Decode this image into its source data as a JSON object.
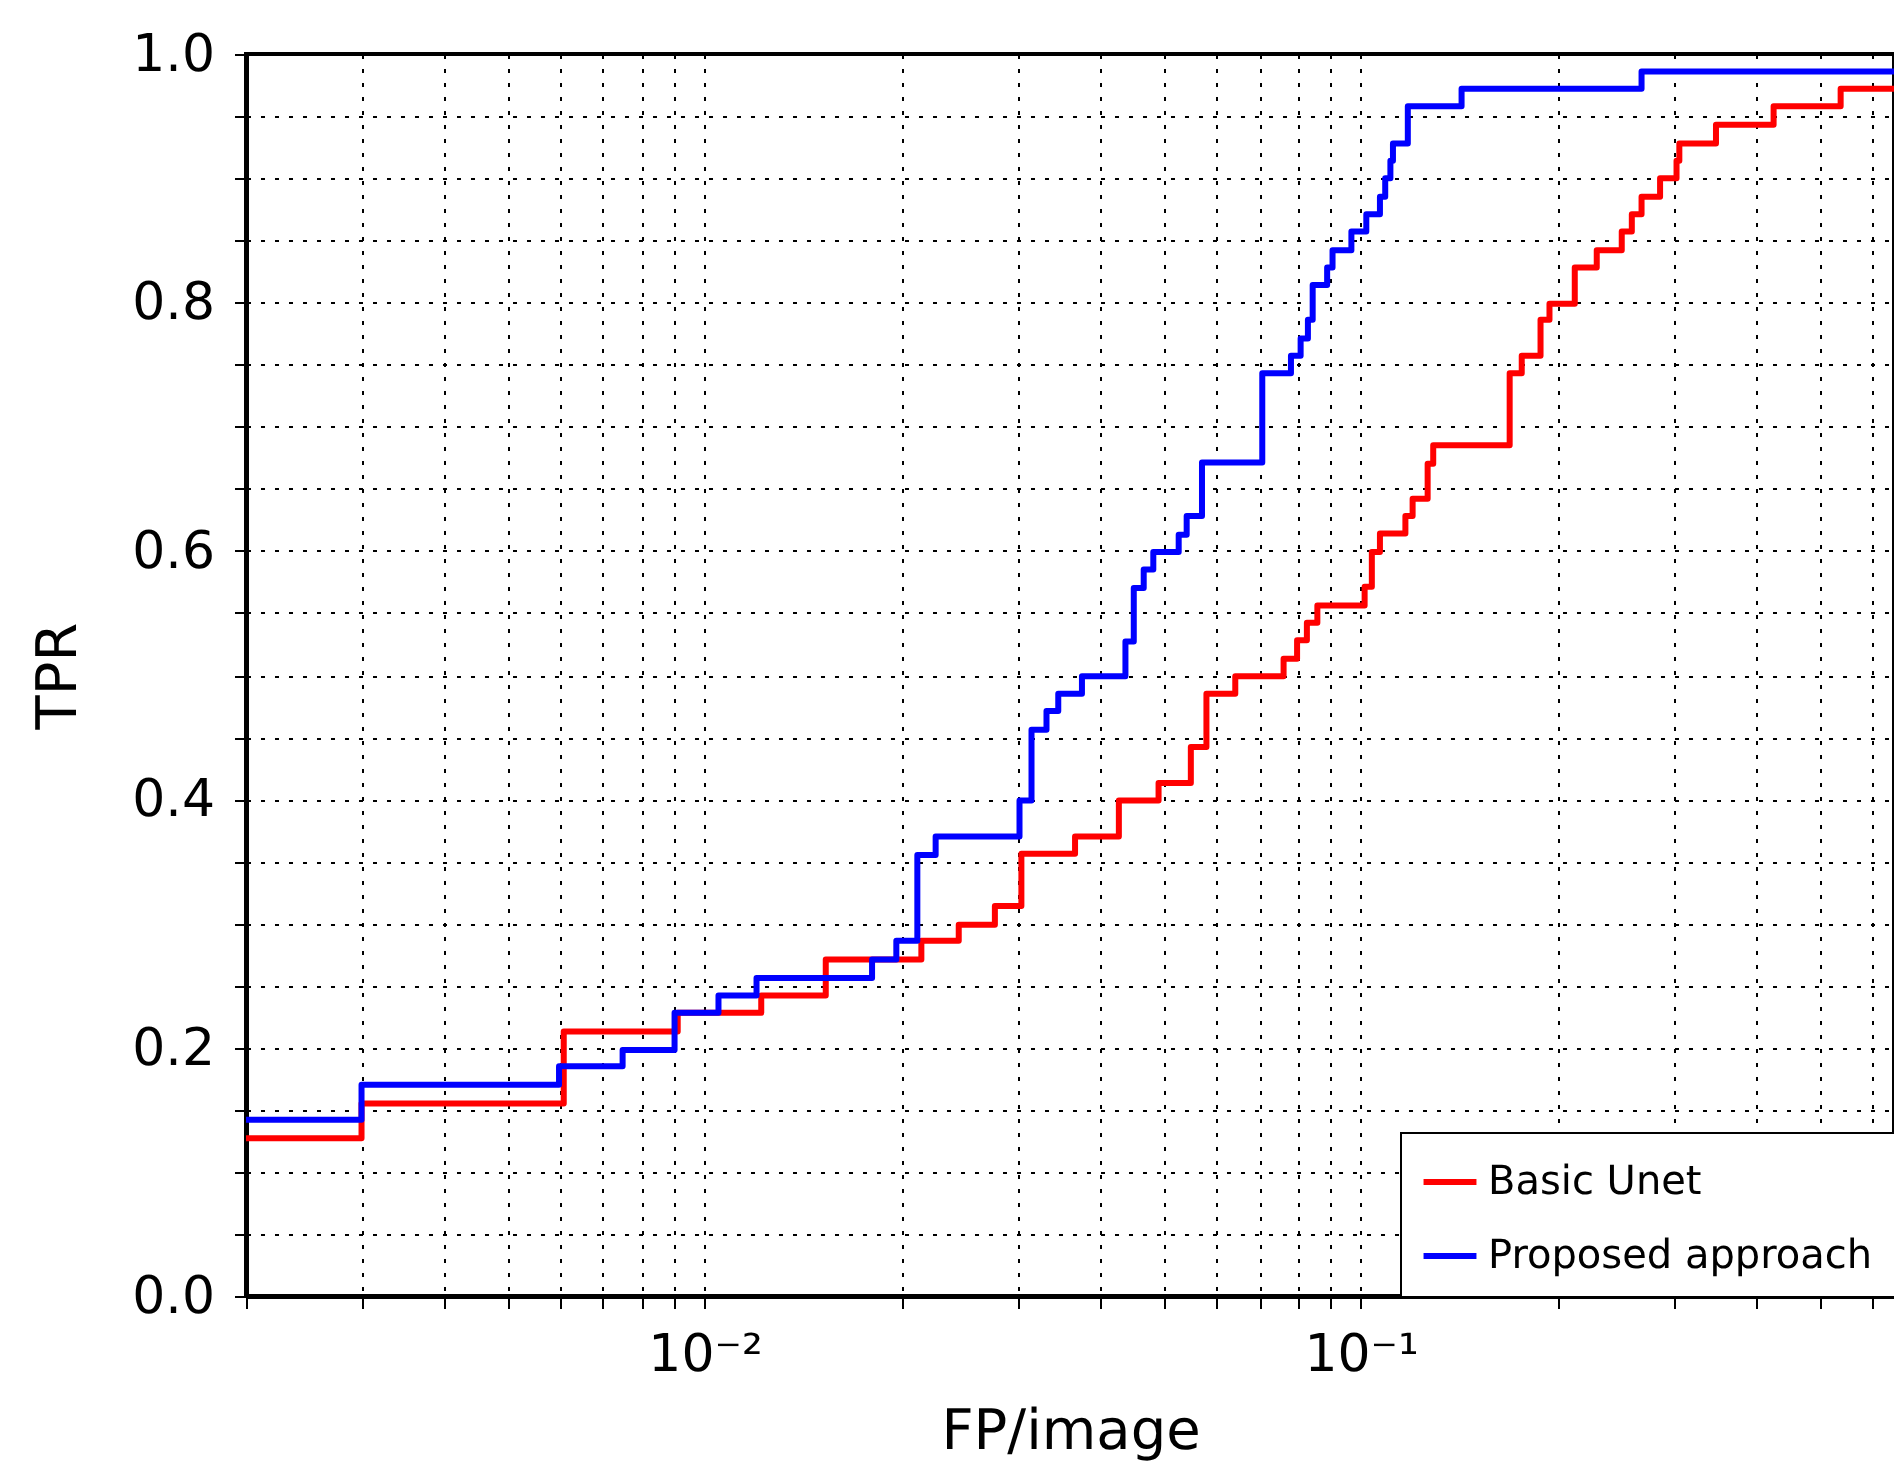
{
  "chart_data": {
    "type": "step",
    "xlabel": "FP/image",
    "ylabel": "TPR",
    "log": "x",
    "grid": true,
    "legend": "bottom right",
    "line_style": "solid",
    "marker": "none",
    "xlim": [
      0.002,
      0.65
    ],
    "ylim": [
      0,
      1
    ],
    "xticks": [
      {
        "value": 0.002,
        "label": null
      },
      {
        "value": 0.003,
        "label": null
      },
      {
        "value": 0.004,
        "label": null
      },
      {
        "value": 0.005,
        "label": null
      },
      {
        "value": 0.006,
        "label": null
      },
      {
        "value": 0.007,
        "label": null
      },
      {
        "value": 0.008,
        "label": null
      },
      {
        "value": 0.009,
        "label": null
      },
      {
        "value": 0.01,
        "label": "10⁻²"
      },
      {
        "value": 0.02,
        "label": null
      },
      {
        "value": 0.03,
        "label": null
      },
      {
        "value": 0.04,
        "label": null
      },
      {
        "value": 0.05,
        "label": null
      },
      {
        "value": 0.06,
        "label": null
      },
      {
        "value": 0.07,
        "label": null
      },
      {
        "value": 0.08,
        "label": null
      },
      {
        "value": 0.09,
        "label": null
      },
      {
        "value": 0.1,
        "label": "10⁻¹"
      },
      {
        "value": 0.2,
        "label": null
      },
      {
        "value": 0.3,
        "label": null
      },
      {
        "value": 0.4,
        "label": null
      },
      {
        "value": 0.5,
        "label": null
      },
      {
        "value": 0.6,
        "label": null
      }
    ],
    "yticks": [
      {
        "value": 0,
        "label": "0.0"
      },
      {
        "value": 0.05,
        "label": null
      },
      {
        "value": 0.1,
        "label": null
      },
      {
        "value": 0.15,
        "label": null
      },
      {
        "value": 0.2,
        "label": "0.2"
      },
      {
        "value": 0.25,
        "label": null
      },
      {
        "value": 0.3,
        "label": null
      },
      {
        "value": 0.35,
        "label": null
      },
      {
        "value": 0.4,
        "label": "0.4"
      },
      {
        "value": 0.45,
        "label": null
      },
      {
        "value": 0.5,
        "label": null
      },
      {
        "value": 0.55,
        "label": null
      },
      {
        "value": 0.6,
        "label": "0.6"
      },
      {
        "value": 0.65,
        "label": null
      },
      {
        "value": 0.7,
        "label": null
      },
      {
        "value": 0.75,
        "label": null
      },
      {
        "value": 0.8,
        "label": "0.8"
      },
      {
        "value": 0.85,
        "label": null
      },
      {
        "value": 0.9,
        "label": null
      },
      {
        "value": 0.95,
        "label": null
      },
      {
        "value": 1,
        "label": "1.0"
      }
    ],
    "series": [
      {
        "name": "Basic Unet",
        "color": "#ff0000",
        "x": [
          0.002,
          0.003,
          0.0061,
          0.0091,
          0.0122,
          0.0153,
          0.0214,
          0.0244,
          0.0277,
          0.0304,
          0.0367,
          0.0428,
          0.0492,
          0.0551,
          0.0582,
          0.0644,
          0.0763,
          0.08,
          0.0828,
          0.0859,
          0.1014,
          0.104,
          0.107,
          0.117,
          0.12,
          0.1265,
          0.129,
          0.1687,
          0.176,
          0.188,
          0.194,
          0.212,
          0.229,
          0.25,
          0.259,
          0.268,
          0.286,
          0.303,
          0.306,
          0.348,
          0.426,
          0.539,
          0.65
        ],
        "values": [
          0.127,
          0.155,
          0.213,
          0.228,
          0.242,
          0.271,
          0.286,
          0.299,
          0.314,
          0.356,
          0.37,
          0.399,
          0.413,
          0.442,
          0.485,
          0.499,
          0.513,
          0.528,
          0.542,
          0.556,
          0.571,
          0.599,
          0.614,
          0.628,
          0.642,
          0.67,
          0.685,
          0.743,
          0.757,
          0.786,
          0.799,
          0.828,
          0.842,
          0.857,
          0.871,
          0.885,
          0.9,
          0.914,
          0.928,
          0.943,
          0.958,
          0.972,
          0.972
        ]
      },
      {
        "name": "Proposed approach",
        "color": "#0000ff",
        "x": [
          0.002,
          0.003,
          0.006,
          0.0075,
          0.009,
          0.0105,
          0.012,
          0.018,
          0.0196,
          0.0211,
          0.0225,
          0.0302,
          0.0315,
          0.0332,
          0.0346,
          0.0376,
          0.0438,
          0.0451,
          0.0467,
          0.0483,
          0.0528,
          0.0543,
          0.0573,
          0.0708,
          0.0783,
          0.081,
          0.0831,
          0.0845,
          0.0889,
          0.0906,
          0.0968,
          0.102,
          0.107,
          0.109,
          0.111,
          0.112,
          0.118,
          0.1425,
          0.268,
          0.65
        ],
        "values": [
          0.142,
          0.17,
          0.185,
          0.198,
          0.228,
          0.242,
          0.256,
          0.271,
          0.286,
          0.355,
          0.37,
          0.399,
          0.456,
          0.471,
          0.485,
          0.499,
          0.527,
          0.57,
          0.585,
          0.599,
          0.613,
          0.628,
          0.671,
          0.743,
          0.757,
          0.771,
          0.786,
          0.814,
          0.828,
          0.842,
          0.857,
          0.871,
          0.885,
          0.9,
          0.914,
          0.928,
          0.958,
          0.972,
          0.986,
          0.986
        ]
      }
    ]
  }
}
